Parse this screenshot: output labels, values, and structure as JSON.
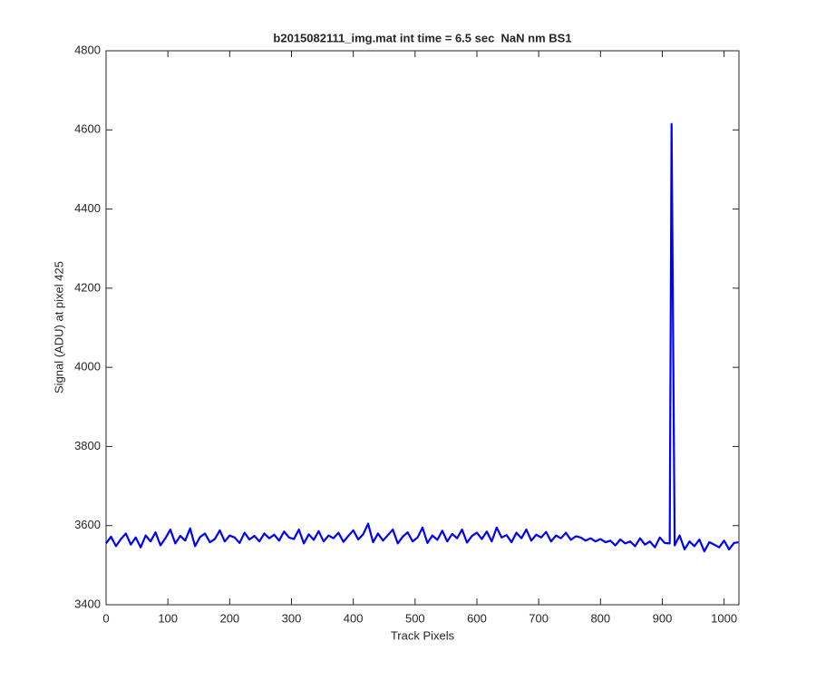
{
  "chart_data": {
    "type": "line",
    "title": "b2015082111_img.mat int time = 6.5 sec  NaN nm BS1",
    "x_label": "Track Pixels",
    "y_label": "Signal (ADU) at pixel 425",
    "xlim": [
      0,
      1024
    ],
    "ylim": [
      3400,
      4800
    ],
    "xticks": [
      0,
      100,
      200,
      300,
      400,
      500,
      600,
      700,
      800,
      900,
      1000
    ],
    "yticks": [
      3400,
      3600,
      3800,
      4000,
      4200,
      4400,
      4600,
      4800
    ],
    "grid": false,
    "x": [
      0,
      8,
      16,
      24,
      32,
      40,
      48,
      56,
      64,
      72,
      80,
      88,
      96,
      104,
      112,
      120,
      128,
      136,
      144,
      152,
      160,
      168,
      176,
      184,
      192,
      200,
      208,
      216,
      224,
      232,
      240,
      248,
      256,
      264,
      272,
      280,
      288,
      296,
      304,
      312,
      320,
      328,
      336,
      344,
      352,
      360,
      368,
      376,
      384,
      392,
      400,
      408,
      416,
      424,
      432,
      440,
      448,
      456,
      464,
      472,
      480,
      488,
      496,
      504,
      512,
      520,
      528,
      536,
      544,
      552,
      560,
      568,
      576,
      584,
      592,
      600,
      608,
      616,
      624,
      632,
      640,
      648,
      656,
      664,
      672,
      680,
      688,
      696,
      704,
      712,
      720,
      728,
      736,
      744,
      752,
      760,
      768,
      776,
      784,
      792,
      800,
      808,
      816,
      824,
      832,
      840,
      848,
      856,
      864,
      872,
      880,
      888,
      896,
      904,
      912,
      915,
      920,
      928,
      936,
      944,
      952,
      960,
      968,
      976,
      984,
      992,
      1000,
      1008,
      1016,
      1023
    ],
    "series": [
      {
        "name": "signal",
        "color": "#0000ff",
        "values": [
          3555,
          3572,
          3548,
          3566,
          3580,
          3552,
          3570,
          3545,
          3575,
          3560,
          3583,
          3550,
          3568,
          3590,
          3555,
          3574,
          3562,
          3593,
          3548,
          3571,
          3580,
          3558,
          3566,
          3588,
          3560,
          3575,
          3570,
          3556,
          3582,
          3565,
          3574,
          3560,
          3580,
          3568,
          3577,
          3562,
          3585,
          3570,
          3566,
          3590,
          3555,
          3578,
          3564,
          3586,
          3560,
          3575,
          3568,
          3582,
          3559,
          3574,
          3588,
          3565,
          3578,
          3605,
          3558,
          3580,
          3562,
          3576,
          3590,
          3555,
          3572,
          3583,
          3560,
          3570,
          3595,
          3556,
          3575,
          3564,
          3587,
          3560,
          3579,
          3568,
          3590,
          3557,
          3574,
          3582,
          3566,
          3585,
          3560,
          3595,
          3570,
          3576,
          3558,
          3582,
          3568,
          3590,
          3562,
          3577,
          3570,
          3584,
          3560,
          3575,
          3568,
          3582,
          3564,
          3573,
          3570,
          3562,
          3568,
          3560,
          3566,
          3558,
          3562,
          3550,
          3565,
          3555,
          3560,
          3548,
          3568,
          3552,
          3560,
          3545,
          3570,
          3556,
          3555,
          4615,
          3550,
          3575,
          3540,
          3560,
          3548,
          3565,
          3535,
          3558,
          3552,
          3545,
          3562,
          3540,
          3556,
          3558
        ]
      }
    ]
  }
}
